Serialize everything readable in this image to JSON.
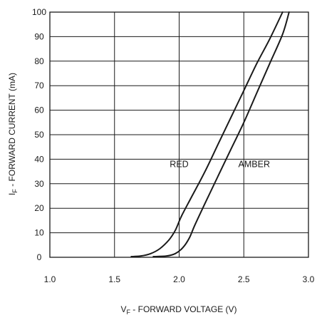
{
  "chart_data": {
    "type": "line",
    "title": "",
    "xlabel": {
      "main": "V",
      "sub": "F",
      "rest": " - FORWARD VOLTAGE (V)"
    },
    "ylabel": {
      "main": "I",
      "sub": "F",
      "rest": " - FORWARD CURRENT (mA)"
    },
    "xlim": [
      1.0,
      3.0
    ],
    "ylim": [
      0,
      100
    ],
    "x_ticks": [
      "1.0",
      "1.5",
      "2.0",
      "2.5",
      "3.0"
    ],
    "y_ticks": [
      "0",
      "10",
      "20",
      "30",
      "40",
      "50",
      "60",
      "70",
      "80",
      "90",
      "100"
    ],
    "grid": true,
    "series": [
      {
        "name": "RED",
        "x": [
          1.63,
          1.7,
          1.78,
          1.85,
          1.92,
          1.97,
          2.02,
          2.1,
          2.2,
          2.3,
          2.4,
          2.5,
          2.6,
          2.7,
          2.8
        ],
        "y": [
          0.3,
          0.5,
          1.5,
          3.5,
          7,
          11,
          17,
          25,
          35,
          46,
          57,
          68,
          79,
          89,
          100
        ]
      },
      {
        "name": "AMBER",
        "x": [
          1.8,
          1.9,
          1.97,
          2.03,
          2.08,
          2.12,
          2.2,
          2.3,
          2.4,
          2.5,
          2.6,
          2.7,
          2.8,
          2.85
        ],
        "y": [
          0.3,
          0.5,
          1.5,
          4,
          8,
          13,
          22,
          33,
          44,
          55,
          67,
          79,
          91,
          100
        ]
      }
    ],
    "annotations": [
      {
        "text": "RED",
        "x": 2.0,
        "y": 35
      },
      {
        "text": "AMBER",
        "x": 2.58,
        "y": 35
      }
    ]
  }
}
